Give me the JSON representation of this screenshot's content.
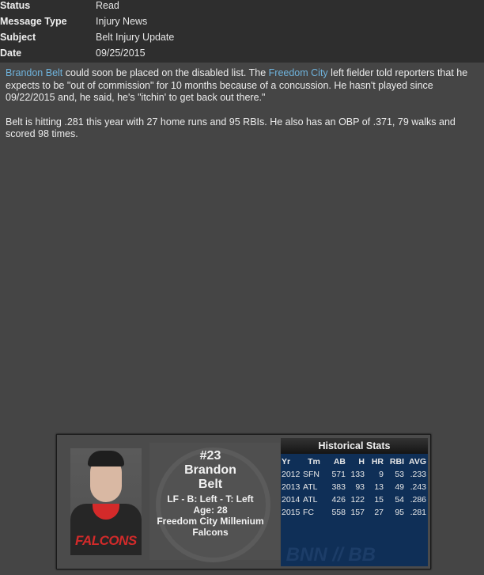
{
  "header": {
    "rows": [
      {
        "label": "Status",
        "value": "Read"
      },
      {
        "label": "Message Type",
        "value": "Injury News"
      },
      {
        "label": "Subject",
        "value": "Belt Injury Update"
      },
      {
        "label": "Date",
        "value": "09/25/2015"
      }
    ]
  },
  "message": {
    "p1_link1": "Brandon Belt",
    "p1_text1": " could soon be placed on the disabled list. The ",
    "p1_link2": "Freedom City",
    "p1_text2": " left fielder told reporters that he expects to be \"out of commission\" for 10 months because of a concussion. He hasn't played since 09/22/2015 and, he said, he's \"itchin' to get back out there.\"",
    "p2": "Belt is hitting .281 this year with 27 home runs and 95 RBIs. He also has an OBP of .371, 79 walks and scored 98 times.",
    "link_color": "#6fb3dc"
  },
  "player_card": {
    "number": "#23",
    "first_name": "Brandon",
    "last_name": "Belt",
    "position_line": "LF - B: Left - T: Left",
    "age": "Age: 28",
    "team": "Freedom City Millenium Falcons",
    "jersey_logo": "FALCONS",
    "stats": {
      "title": "Historical Stats",
      "columns": [
        "Yr",
        "Tm",
        "AB",
        "H",
        "HR",
        "RBI",
        "AVG"
      ],
      "rows": [
        [
          "2012",
          "SFN",
          "571",
          "133",
          "9",
          "53",
          ".233"
        ],
        [
          "2013",
          "ATL",
          "383",
          "93",
          "13",
          "49",
          ".243"
        ],
        [
          "2014",
          "ATL",
          "426",
          "122",
          "15",
          "54",
          ".286"
        ],
        [
          "2015",
          "FC",
          "558",
          "157",
          "27",
          "95",
          ".281"
        ]
      ]
    }
  }
}
